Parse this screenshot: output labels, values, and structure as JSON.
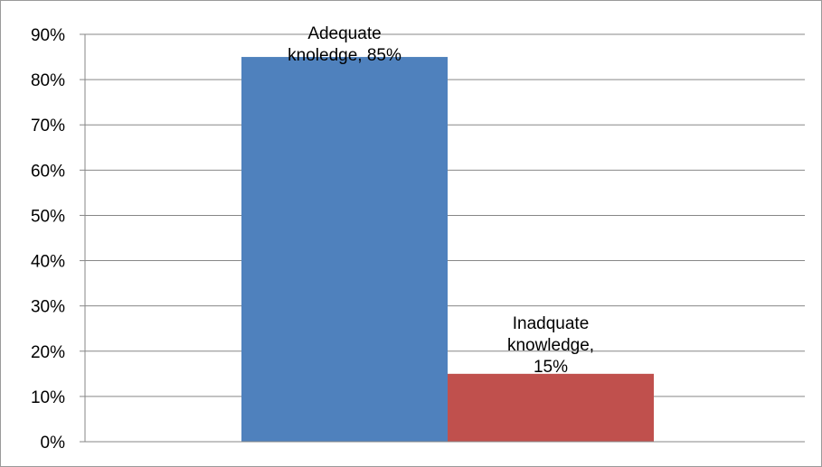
{
  "chart_data": {
    "type": "bar",
    "title": "",
    "xlabel": "",
    "ylabel": "",
    "ylim": [
      0,
      90
    ],
    "y_ticks": [
      0,
      10,
      20,
      30,
      40,
      50,
      60,
      70,
      80,
      90
    ],
    "y_tick_format": "percent",
    "grid": true,
    "legend": "none",
    "categories": [
      "",
      ""
    ],
    "series": [
      {
        "values": [
          85,
          null
        ],
        "color": "#4f81bd",
        "data_label_lines": [
          "Adequate",
          "knoledge, 85%"
        ]
      },
      {
        "values": [
          null,
          15
        ],
        "color": "#c0504d",
        "data_label_lines": [
          "Inadquate",
          "knowledge,",
          "15%"
        ]
      }
    ]
  }
}
